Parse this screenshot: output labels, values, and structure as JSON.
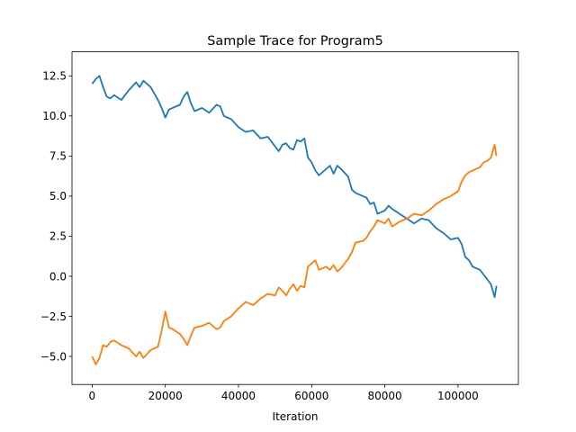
{
  "chart_data": {
    "type": "line",
    "title": "Sample Trace for Program5",
    "xlabel": "Iteration",
    "ylabel": "",
    "xlim": [
      -5500,
      116500
    ],
    "ylim": [
      -6.75,
      14.0
    ],
    "xticks": [
      0,
      20000,
      40000,
      60000,
      80000,
      100000
    ],
    "yticks": [
      -5.0,
      -2.5,
      0.0,
      2.5,
      5.0,
      7.5,
      10.0,
      12.5
    ],
    "grid": false,
    "legend": "none",
    "series": [
      {
        "color": "#1f77b4",
        "x": [
          0,
          1000,
          2000,
          3000,
          4000,
          5000,
          6000,
          8000,
          10000,
          12000,
          13000,
          14000,
          16000,
          18000,
          19000,
          20000,
          21000,
          22000,
          24000,
          25000,
          26000,
          27000,
          28000,
          30000,
          32000,
          34000,
          35000,
          36000,
          38000,
          40000,
          42000,
          44000,
          46000,
          48000,
          50000,
          51000,
          52000,
          53000,
          54000,
          55000,
          56000,
          57000,
          58000,
          59000,
          60000,
          61000,
          62000,
          64000,
          65000,
          66000,
          67000,
          68000,
          70000,
          71000,
          72000,
          74000,
          75000,
          76000,
          77000,
          78000,
          80000,
          81000,
          82000,
          84000,
          86000,
          88000,
          90000,
          92000,
          94000,
          96000,
          98000,
          100000,
          101000,
          102000,
          103000,
          104000,
          106000,
          107000,
          108000,
          109000,
          110000,
          110500
        ],
        "y": [
          12.0,
          12.3,
          12.5,
          11.8,
          11.2,
          11.1,
          11.3,
          11.0,
          11.6,
          12.1,
          11.8,
          12.2,
          11.8,
          11.0,
          10.5,
          9.9,
          10.4,
          10.5,
          10.7,
          11.2,
          11.5,
          10.8,
          10.3,
          10.5,
          10.2,
          10.7,
          10.6,
          10.0,
          9.8,
          9.3,
          9.0,
          9.1,
          8.6,
          8.7,
          8.1,
          7.8,
          8.2,
          8.3,
          8.0,
          7.9,
          8.5,
          8.4,
          8.6,
          7.4,
          7.1,
          6.6,
          6.3,
          6.7,
          6.9,
          6.4,
          6.9,
          6.7,
          6.2,
          5.4,
          5.2,
          5.0,
          4.9,
          4.5,
          4.6,
          3.9,
          4.1,
          4.4,
          4.2,
          3.9,
          3.6,
          3.3,
          3.6,
          3.5,
          3.0,
          2.7,
          2.3,
          2.4,
          2.0,
          1.2,
          1.0,
          0.6,
          0.4,
          0.1,
          -0.2,
          -0.5,
          -1.3,
          -0.6
        ]
      },
      {
        "color": "#ff7f0e",
        "x": [
          0,
          1000,
          2000,
          3000,
          4000,
          5000,
          6000,
          8000,
          10000,
          12000,
          13000,
          14000,
          16000,
          18000,
          19000,
          20000,
          21000,
          22000,
          24000,
          25000,
          26000,
          27000,
          28000,
          30000,
          32000,
          34000,
          35000,
          36000,
          38000,
          40000,
          42000,
          44000,
          46000,
          48000,
          50000,
          51000,
          52000,
          53000,
          54000,
          55000,
          56000,
          57000,
          58000,
          59000,
          60000,
          61000,
          62000,
          64000,
          65000,
          66000,
          67000,
          68000,
          70000,
          71000,
          72000,
          74000,
          75000,
          76000,
          77000,
          78000,
          80000,
          81000,
          82000,
          84000,
          86000,
          88000,
          90000,
          92000,
          94000,
          96000,
          98000,
          100000,
          101000,
          102000,
          103000,
          104000,
          106000,
          107000,
          108000,
          109000,
          110000,
          110500
        ],
        "y": [
          -5.0,
          -5.5,
          -5.1,
          -4.3,
          -4.4,
          -4.1,
          -4.0,
          -4.3,
          -4.5,
          -5.0,
          -4.7,
          -5.1,
          -4.6,
          -4.4,
          -3.4,
          -2.2,
          -3.2,
          -3.3,
          -3.6,
          -3.9,
          -4.3,
          -3.7,
          -3.2,
          -3.1,
          -2.9,
          -3.3,
          -3.2,
          -2.8,
          -2.5,
          -2.0,
          -1.6,
          -1.8,
          -1.4,
          -1.1,
          -1.2,
          -0.7,
          -0.9,
          -1.2,
          -0.8,
          -0.5,
          -0.9,
          -0.6,
          -0.7,
          0.6,
          0.8,
          1.0,
          0.4,
          0.6,
          0.4,
          0.7,
          0.3,
          0.5,
          1.1,
          1.5,
          2.1,
          2.2,
          2.4,
          2.8,
          3.1,
          3.5,
          3.3,
          3.6,
          3.1,
          3.4,
          3.6,
          3.9,
          3.8,
          4.1,
          4.5,
          4.8,
          5.0,
          5.3,
          5.9,
          6.3,
          6.5,
          6.6,
          6.8,
          7.1,
          7.2,
          7.4,
          8.2,
          7.5
        ]
      }
    ]
  }
}
